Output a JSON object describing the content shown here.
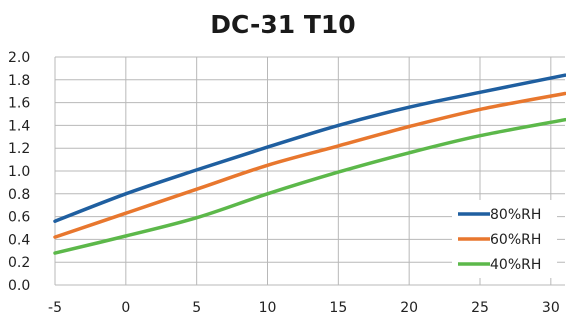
{
  "chart_data": {
    "type": "line",
    "title": "DC-31 T10",
    "xlabel": "",
    "ylabel": "",
    "x": [
      -5,
      0,
      5,
      10,
      15,
      20,
      25,
      31
    ],
    "xlim": [
      -5,
      31
    ],
    "ylim": [
      0,
      2.0
    ],
    "x_ticks": [
      "-5",
      "0",
      "5",
      "10",
      "15",
      "20",
      "25",
      "30"
    ],
    "x_tick_values": [
      -5,
      0,
      5,
      10,
      15,
      20,
      25,
      30
    ],
    "y_ticks": [
      "0.0",
      "0.2",
      "0.4",
      "0.6",
      "0.8",
      "1.0",
      "1.2",
      "1.4",
      "1.6",
      "1.8",
      "2.0"
    ],
    "y_tick_values": [
      0,
      0.2,
      0.4,
      0.6,
      0.8,
      1.0,
      1.2,
      1.4,
      1.6,
      1.8,
      2.0
    ],
    "grid": true,
    "legend_position": "bottom-right",
    "series": [
      {
        "name": "80%RH",
        "color": "#1f5fa0",
        "values": [
          0.56,
          0.8,
          1.01,
          1.21,
          1.4,
          1.56,
          1.69,
          1.84
        ]
      },
      {
        "name": "60%RH",
        "color": "#e8772e",
        "values": [
          0.42,
          0.63,
          0.84,
          1.05,
          1.22,
          1.39,
          1.54,
          1.68
        ]
      },
      {
        "name": "40%RH",
        "color": "#5cb84a",
        "values": [
          0.28,
          0.43,
          0.59,
          0.8,
          0.99,
          1.16,
          1.31,
          1.45
        ]
      }
    ]
  }
}
